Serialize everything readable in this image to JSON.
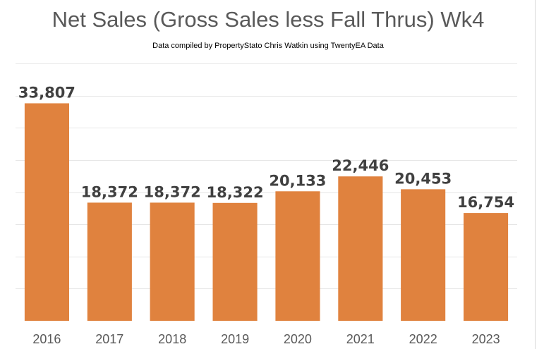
{
  "chart_data": {
    "type": "bar",
    "title": "Net Sales (Gross Sales less Fall Thrus)  Wk4",
    "subtitle": "Data compiled by PropertyStato Chris Watkin using TwentyEA Data",
    "categories": [
      "2016",
      "2017",
      "2018",
      "2019",
      "2020",
      "2021",
      "2022",
      "2023"
    ],
    "values": [
      33807,
      18372,
      18372,
      18322,
      20133,
      22446,
      20453,
      16754
    ],
    "data_labels": [
      "33,807",
      "18,372",
      "18,372",
      "18,322",
      "20,133",
      "22,446",
      "20,453",
      "16,754"
    ],
    "xlabel": "",
    "ylabel": "",
    "ylim": [
      0,
      40000
    ],
    "grid": true,
    "bar_color": "#E0823E",
    "legend": "none"
  }
}
